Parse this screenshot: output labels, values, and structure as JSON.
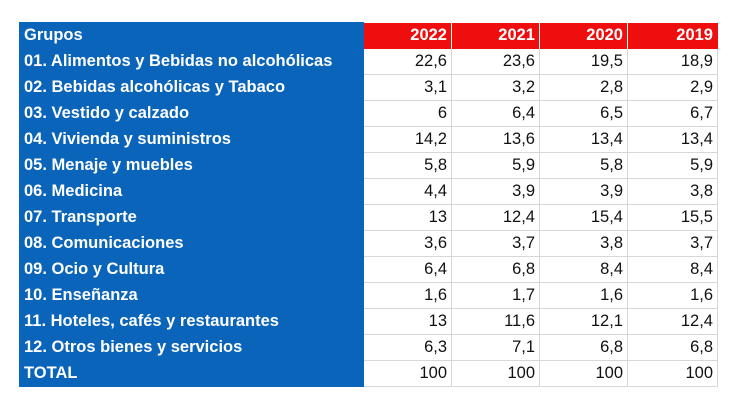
{
  "table": {
    "header": {
      "label": "Grupos",
      "years": [
        "2022",
        "2021",
        "2020",
        "2019"
      ]
    },
    "rows": [
      {
        "label": "01. Alimentos y Bebidas no alcohólicas",
        "values": [
          "22,6",
          "23,6",
          "19,5",
          "18,9"
        ]
      },
      {
        "label": "02. Bebidas alcohólicas y Tabaco",
        "values": [
          "3,1",
          "3,2",
          "2,8",
          "2,9"
        ]
      },
      {
        "label": "03. Vestido y calzado",
        "values": [
          "6",
          "6,4",
          "6,5",
          "6,7"
        ]
      },
      {
        "label": "04. Vivienda y suministros",
        "values": [
          "14,2",
          "13,6",
          "13,4",
          "13,4"
        ]
      },
      {
        "label": "05. Menaje y muebles",
        "values": [
          "5,8",
          "5,9",
          "5,8",
          "5,9"
        ]
      },
      {
        "label": "06. Medicina",
        "values": [
          "4,4",
          "3,9",
          "3,9",
          "3,8"
        ]
      },
      {
        "label": "07. Transporte",
        "values": [
          "13",
          "12,4",
          "15,4",
          "15,5"
        ]
      },
      {
        "label": "08. Comunicaciones",
        "values": [
          "3,6",
          "3,7",
          "3,8",
          "3,7"
        ]
      },
      {
        "label": "09. Ocio y Cultura",
        "values": [
          "6,4",
          "6,8",
          "8,4",
          "8,4"
        ]
      },
      {
        "label": "10. Enseñanza",
        "values": [
          "1,6",
          "1,7",
          "1,6",
          "1,6"
        ]
      },
      {
        "label": "11. Hoteles, cafés y restaurantes",
        "values": [
          "13",
          "11,6",
          "12,1",
          "12,4"
        ]
      },
      {
        "label": "12. Otros bienes y servicios",
        "values": [
          "6,3",
          "7,1",
          "6,8",
          "6,8"
        ]
      }
    ],
    "total": {
      "label": "TOTAL",
      "values": [
        "100",
        "100",
        "100",
        "100"
      ]
    }
  },
  "colors": {
    "label_column": "#0a64b9",
    "year_header": "#ee0e0e"
  }
}
